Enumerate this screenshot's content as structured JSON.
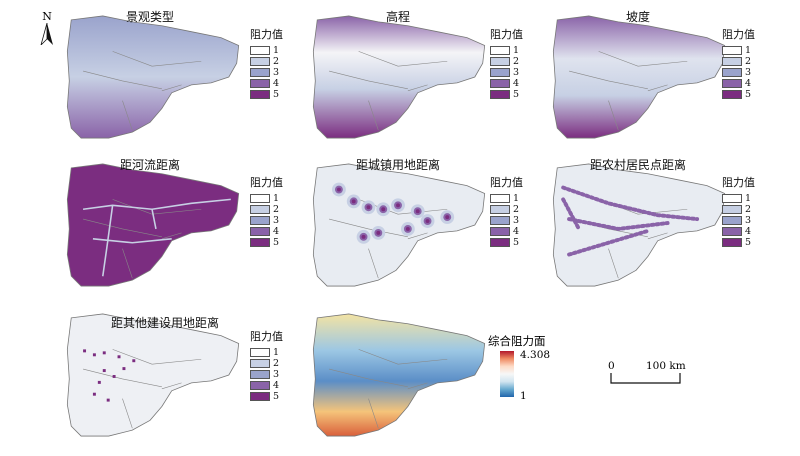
{
  "north": {
    "label": "N"
  },
  "legend_title": "阻力值",
  "legend_classes": [
    "1",
    "2",
    "3",
    "4",
    "5"
  ],
  "legend_colors": [
    "#ffffff",
    "#c7d0e4",
    "#9aa3cc",
    "#8a63a8",
    "#7b2d80"
  ],
  "panels": [
    {
      "title": "景观类型"
    },
    {
      "title": "高程"
    },
    {
      "title": "坡度"
    },
    {
      "title": "距河流距离"
    },
    {
      "title": "距城镇用地距离"
    },
    {
      "title": "距农村居民点距离"
    },
    {
      "title": "距其他建设用地距离"
    },
    {
      "title": ""
    }
  ],
  "composite": {
    "title": "综合阻力面",
    "max": "4.308",
    "min": "1"
  },
  "scale": {
    "zero": "0",
    "label": "100 km"
  }
}
